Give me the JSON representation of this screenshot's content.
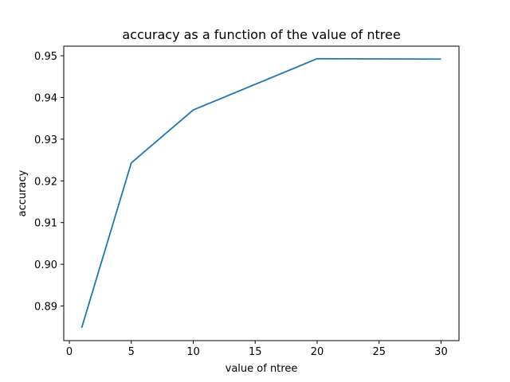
{
  "chart_data": {
    "type": "line",
    "title": "accuracy as a function of the value of ntree",
    "xlabel": "value of ntree",
    "ylabel": "accuracy",
    "xlim": [
      -0.45,
      31.45
    ],
    "ylim": [
      0.8817,
      0.9523
    ],
    "xticks": [
      0,
      5,
      10,
      15,
      20,
      25,
      30
    ],
    "yticks": [
      0.89,
      0.9,
      0.91,
      0.92,
      0.93,
      0.94,
      0.95
    ],
    "ytick_labels": [
      "0.89",
      "0.90",
      "0.91",
      "0.92",
      "0.93",
      "0.94",
      "0.95"
    ],
    "grid": false,
    "series": [
      {
        "x": [
          1,
          5,
          10,
          20,
          30
        ],
        "values": [
          0.8848,
          0.9243,
          0.937,
          0.9493,
          0.9492
        ],
        "color": "#1f77b4"
      }
    ]
  }
}
